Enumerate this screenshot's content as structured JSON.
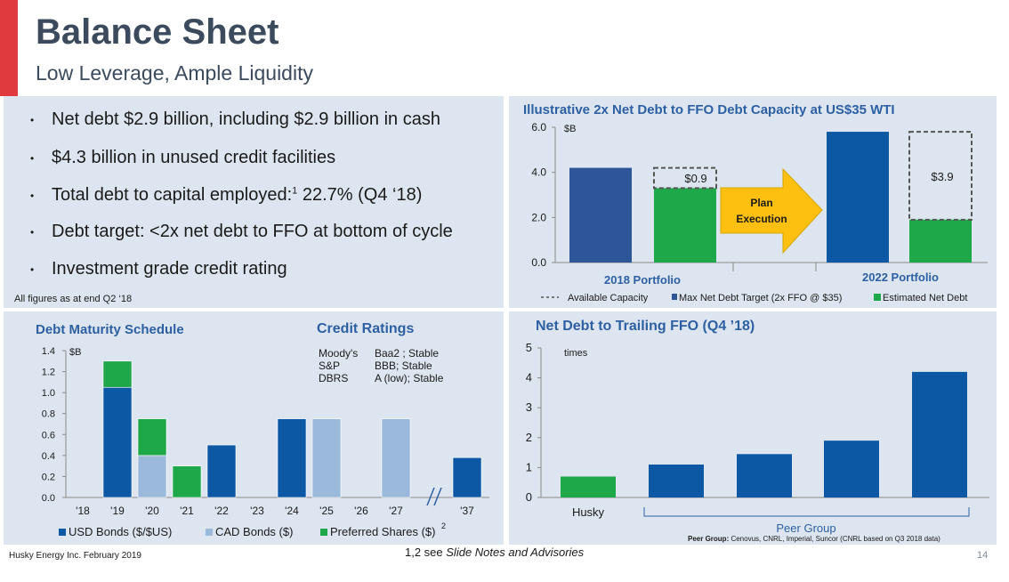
{
  "header": {
    "title": "Balance Sheet",
    "subtitle": "Low Leverage, Ample Liquidity"
  },
  "bullets": {
    "b1": "Net debt $2.9 billion, including $2.9 billion in cash",
    "b2": "$4.3 billion in unused credit facilities",
    "b3_pre": "Total debt to capital employed:",
    "b3_sup": "1",
    "b3_post": " 22.7% (Q4 ‘18)",
    "b4": "Debt target: <2x net debt to FFO at bottom of cycle",
    "b5": "Investment grade credit rating",
    "note": "All figures as at end Q2 ‘18"
  },
  "colors": {
    "panel": "#dde6f0",
    "navy": "#2e5597",
    "blue": "#0c58a4",
    "lightblue": "#9bb9db",
    "green": "#1fa84a",
    "arrow": "#fdc010",
    "red": "#e03a3e"
  },
  "capacity": {
    "title": "Illustrative 2x Net Debt to FFO Debt Capacity at US$35 WTI",
    "unit": "$B",
    "plan_line1": "Plan",
    "plan_line2": "Execution",
    "label_2018": "2018 Portfolio",
    "label_2022": "2022 Portfolio",
    "legend_available": "Available Capacity",
    "legend_max": "Max Net Debt Target (2x FFO @ $35)",
    "legend_estimated": "Estimated Net Debt",
    "avail_2018_label": "$0.9",
    "avail_2022_label": "$3.9",
    "chart_data": {
      "type": "bar",
      "ylim": [
        0,
        6
      ],
      "yticks": [
        "0.0",
        "2.0",
        "4.0",
        "6.0"
      ],
      "bars": [
        {
          "group": "2018 Portfolio",
          "series": "Max Net Debt Target (2x FFO @ $35)",
          "value": 4.2
        },
        {
          "group": "2018 Portfolio",
          "series": "Estimated Net Debt",
          "value": 3.3,
          "available": 0.9
        },
        {
          "group": "2022 Portfolio",
          "series": "Max Net Debt Target (2x FFO @ $35)",
          "value": 5.8
        },
        {
          "group": "2022 Portfolio",
          "series": "Estimated Net Debt",
          "value": 1.9,
          "available": 3.9
        }
      ]
    }
  },
  "maturity": {
    "title": "Debt Maturity Schedule",
    "unit": "$B",
    "legend_usd": "USD Bonds ($/$US)",
    "legend_cad": "CAD Bonds ($)",
    "legend_pref": "Preferred Shares ($)",
    "legend_pref_sup": "2",
    "chart_data": {
      "type": "bar",
      "ylim": [
        0,
        1.4
      ],
      "yticks": [
        "0.0",
        "0.2",
        "0.4",
        "0.6",
        "0.8",
        "1.0",
        "1.2",
        "1.4"
      ],
      "categories": [
        "'18",
        "'19",
        "'20",
        "'21",
        "'22",
        "'23",
        "'24",
        "'25",
        "'26",
        "'27",
        "'37"
      ],
      "series": [
        {
          "name": "USD Bonds ($/$US)",
          "values": [
            0,
            1.05,
            0,
            0,
            0.5,
            0,
            0.75,
            0,
            0,
            0,
            0.38
          ]
        },
        {
          "name": "CAD Bonds ($)",
          "values": [
            0,
            0,
            0.4,
            0,
            0,
            0,
            0,
            0.75,
            0,
            0.75,
            0
          ]
        },
        {
          "name": "Preferred Shares ($)",
          "values": [
            0,
            0.25,
            0.35,
            0.3,
            0,
            0,
            0,
            0,
            0,
            0,
            0
          ]
        }
      ]
    }
  },
  "ratings": {
    "title": "Credit Ratings",
    "rows": [
      {
        "agency": "Moody's",
        "rating": "Baa2 ; Stable"
      },
      {
        "agency": "S&P",
        "rating": "BBB; Stable"
      },
      {
        "agency": "DBRS",
        "rating": "A (low); Stable"
      }
    ]
  },
  "trailing": {
    "title": "Net Debt to Trailing FFO (Q4 ’18)",
    "unit": "times",
    "husky_label": "Husky",
    "peer_label": "Peer Group",
    "peer_note_bold": "Peer Group:",
    "peer_note": " Cenovus, CNRL, Imperial, Suncor (CNRL based on Q3 2018 data)",
    "chart_data": {
      "type": "bar",
      "ylim": [
        0,
        5
      ],
      "yticks": [
        "0",
        "1",
        "2",
        "3",
        "4",
        "5"
      ],
      "values": [
        0.7,
        1.1,
        1.45,
        1.9,
        4.2
      ]
    }
  },
  "footer": {
    "company": "Husky Energy Inc. February 2019",
    "notes_pre": "1,2 see ",
    "notes_italic": "Slide Notes and Advisories",
    "page": "14"
  }
}
